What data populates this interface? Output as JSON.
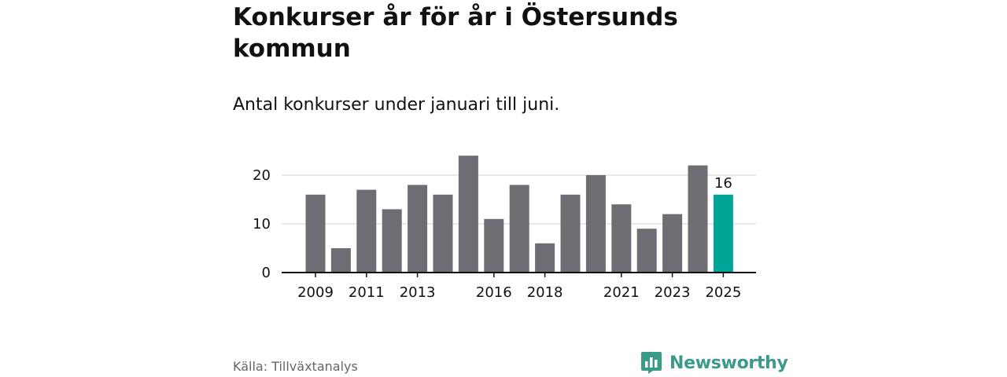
{
  "title": "Konkurser år för år i Östersunds kommun",
  "subtitle": "Antal konkurser under januari till juni.",
  "source": "Källa: Tillväxtanalys",
  "logo": {
    "text": "Newsworthy",
    "icon": "newsworthy-logo-icon",
    "color": "#3c9a8a"
  },
  "colors": {
    "bar": "#6e6d73",
    "highlight": "#00a597",
    "grid": "#d9d9d9",
    "axis": "#111111"
  },
  "chart_data": {
    "type": "bar",
    "title": "Konkurser år för år i Östersunds kommun",
    "subtitle": "Antal konkurser under januari till juni.",
    "categories": [
      "2009",
      "2010",
      "2011",
      "2012",
      "2013",
      "2014",
      "2015",
      "2016",
      "2017",
      "2018",
      "2019",
      "2020",
      "2021",
      "2022",
      "2023",
      "2024",
      "2025"
    ],
    "values": [
      16,
      5,
      17,
      13,
      18,
      16,
      24,
      11,
      18,
      6,
      16,
      20,
      14,
      9,
      12,
      22,
      16
    ],
    "x_tick_labels": [
      "2009",
      "2011",
      "2013",
      "2016",
      "2018",
      "2021",
      "2023",
      "2025"
    ],
    "y_ticks": [
      0,
      10,
      20
    ],
    "ylim": [
      0,
      25
    ],
    "highlight": {
      "category": "2025",
      "label": "16"
    },
    "grid": true,
    "legend": "none"
  }
}
